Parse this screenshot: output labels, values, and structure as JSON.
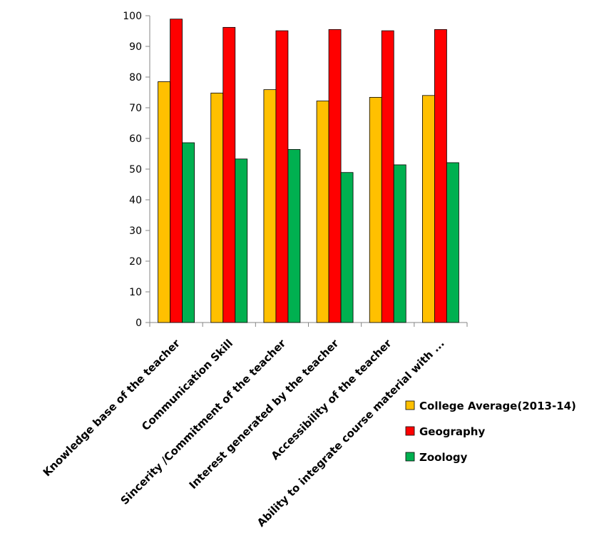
{
  "chart_data": {
    "type": "bar",
    "categories": [
      "Knowledge base of the teacher",
      "Communication Skill",
      "Sincerity /Commitment  of the teacher",
      "Interest generated by the teacher",
      "Accessibility of the teacher",
      "Ability to integrate course material  with ..."
    ],
    "series": [
      {
        "name": "College Average(2013-14)",
        "color": "#FFC000",
        "values": [
          78.5,
          74.8,
          75.9,
          72.2,
          73.4,
          74.0
        ]
      },
      {
        "name": "Geography",
        "color": "#FF0000",
        "values": [
          98.9,
          96.2,
          95.1,
          95.5,
          95.1,
          95.5
        ]
      },
      {
        "name": "Zoology",
        "color": "#00B050",
        "values": [
          58.6,
          53.3,
          56.4,
          48.9,
          51.4,
          52.1
        ]
      }
    ],
    "y_ticks": [
      "0",
      "10",
      "20",
      "30",
      "40",
      "50",
      "60",
      "70",
      "80",
      "90",
      "100"
    ],
    "ylim": [
      0,
      100
    ],
    "title": "",
    "xlabel": "",
    "ylabel": "",
    "grid": false,
    "legend_position": "right"
  }
}
